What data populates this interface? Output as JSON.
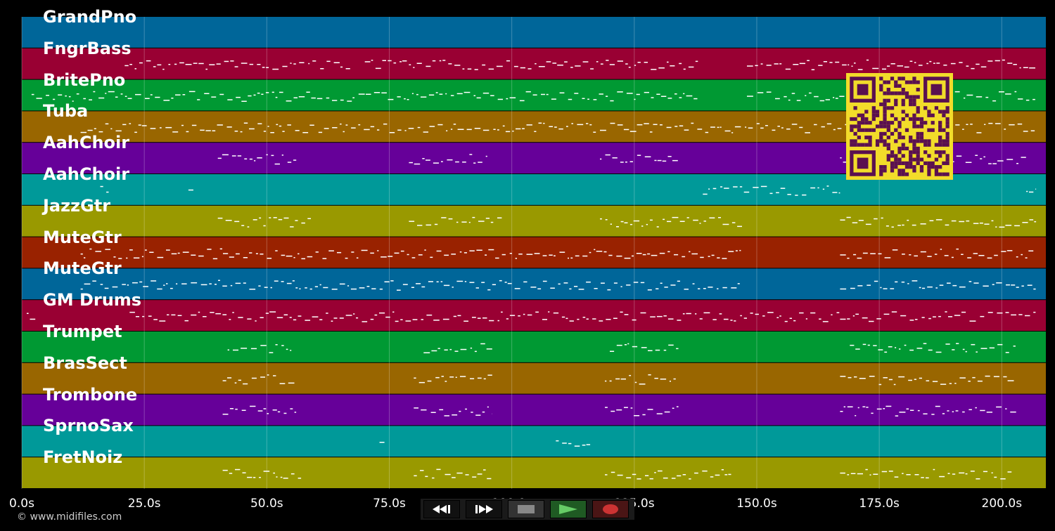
{
  "tracks": [
    {
      "name": "GrandPno",
      "color": "#006699"
    },
    {
      "name": "FngrBass",
      "color": "#990033"
    },
    {
      "name": "BritePno",
      "color": "#009933"
    },
    {
      "name": "Tuba",
      "color": "#996600"
    },
    {
      "name": "AahChoir",
      "color": "#660099"
    },
    {
      "name": "AahChoir",
      "color": "#009999"
    },
    {
      "name": "JazzGtr",
      "color": "#999900"
    },
    {
      "name": "MuteGtr",
      "color": "#992200"
    },
    {
      "name": "MuteGtr",
      "color": "#006699"
    },
    {
      "name": "GM Drums",
      "color": "#990033"
    },
    {
      "name": "Trumpet",
      "color": "#009933"
    },
    {
      "name": "BrasSect",
      "color": "#996600"
    },
    {
      "name": "Trombone",
      "color": "#660099"
    },
    {
      "name": "SprnoSax",
      "color": "#009999"
    },
    {
      "name": "FretNoiz",
      "color": "#999900"
    }
  ],
  "time_axis": {
    "ticks": [
      "0.0s",
      "25.0s",
      "50.0s",
      "75.0s",
      "100.0s",
      "125.0s",
      "150.0s",
      "175.0s",
      "200.0s"
    ],
    "tick_values": [
      0,
      25,
      50,
      75,
      100,
      125,
      150,
      175,
      200
    ],
    "max_seconds": 209
  },
  "transport": {
    "buttons": [
      {
        "name": "rewind-icon"
      },
      {
        "name": "fast-forward-icon"
      },
      {
        "name": "stop-icon"
      },
      {
        "name": "play-icon"
      },
      {
        "name": "record-icon"
      }
    ]
  },
  "copyright": "© www.midifiles.com"
}
